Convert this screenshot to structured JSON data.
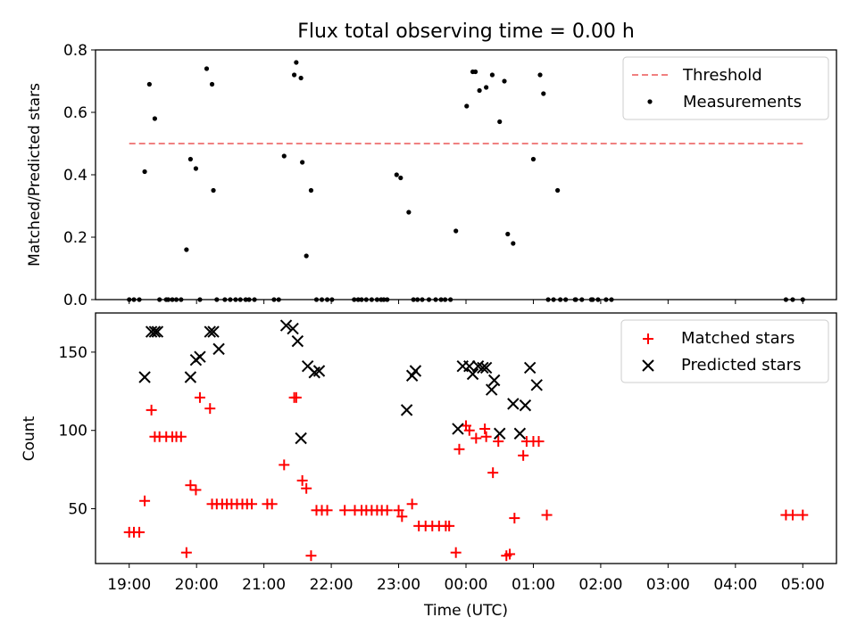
{
  "chart_data": [
    {
      "type": "scatter",
      "title": "Flux total observing time = 0.00 h",
      "ylabel": "Matched/Predicted stars",
      "xlabel": "",
      "ylim": [
        0,
        0.8
      ],
      "yticks": [
        0.0,
        0.2,
        0.4,
        0.6,
        0.8
      ],
      "ytick_labels": [
        "0.0",
        "0.2",
        "0.4",
        "0.6",
        "0.8"
      ],
      "x_unit": "hours since 19:00 UTC",
      "xlim": [
        -0.5,
        10.5
      ],
      "legend_position": "top-right",
      "threshold": {
        "name": "Threshold",
        "value": 0.5,
        "x_range": [
          0,
          10
        ],
        "color": "#f08080",
        "style": "dashed"
      },
      "series": [
        {
          "name": "Measurements",
          "marker": "dot",
          "color": "#000000",
          "x": [
            0.0,
            0.07,
            0.15,
            0.23,
            0.3,
            0.38,
            0.45,
            0.55,
            0.58,
            0.64,
            0.7,
            0.77,
            0.85,
            0.91,
            0.99,
            1.05,
            1.15,
            1.23,
            1.25,
            1.3,
            1.42,
            1.5,
            1.58,
            1.65,
            1.73,
            1.78,
            1.86,
            2.15,
            2.22,
            2.3,
            2.45,
            2.48,
            2.55,
            2.57,
            2.63,
            2.7,
            2.78,
            2.86,
            2.94,
            3.01,
            3.34,
            3.4,
            3.45,
            3.52,
            3.6,
            3.68,
            3.74,
            3.78,
            3.83,
            3.97,
            4.03,
            4.15,
            4.22,
            4.28,
            4.35,
            4.45,
            4.55,
            4.63,
            4.69,
            4.77,
            4.85,
            5.01,
            5.1,
            5.14,
            5.2,
            5.3,
            5.39,
            5.5,
            5.57,
            5.62,
            5.7,
            6.0,
            6.1,
            6.15,
            6.22,
            6.3,
            6.36,
            6.4,
            6.48,
            6.62,
            6.63,
            6.72,
            6.86,
            6.88,
            6.96,
            7.08,
            7.16,
            9.75,
            9.85,
            10.0
          ],
          "y": [
            0.0,
            0.0,
            0.0,
            0.41,
            0.69,
            0.58,
            0.0,
            0.0,
            0.0,
            0.0,
            0.0,
            0.0,
            0.16,
            0.45,
            0.42,
            0.0,
            0.74,
            0.69,
            0.35,
            0.0,
            0.0,
            0.0,
            0.0,
            0.0,
            0.0,
            0.0,
            0.0,
            0.0,
            0.0,
            0.46,
            0.72,
            0.76,
            0.71,
            0.44,
            0.14,
            0.35,
            0.0,
            0.0,
            0.0,
            0.0,
            0.0,
            0.0,
            0.0,
            0.0,
            0.0,
            0.0,
            0.0,
            0.0,
            0.0,
            0.4,
            0.39,
            0.28,
            0.0,
            0.0,
            0.0,
            0.0,
            0.0,
            0.0,
            0.0,
            0.0,
            0.22,
            0.62,
            0.73,
            0.73,
            0.67,
            0.68,
            0.72,
            0.57,
            0.7,
            0.21,
            0.18,
            0.45,
            0.72,
            0.66,
            0.0,
            0.0,
            0.35,
            0.0,
            0.0,
            0.0,
            0.0,
            0.0,
            0.0,
            0.0,
            0.0,
            0.0,
            0.0,
            0.0,
            0.0,
            0.0
          ]
        }
      ]
    },
    {
      "type": "scatter",
      "title": "",
      "ylabel": "Count",
      "xlabel": "Time (UTC)",
      "ylim": [
        15,
        175
      ],
      "yticks": [
        50,
        100,
        150
      ],
      "ytick_labels": [
        "50",
        "100",
        "150"
      ],
      "x_unit": "hours since 19:00 UTC",
      "xlim": [
        -0.5,
        10.5
      ],
      "xticks": [
        0,
        1,
        2,
        3,
        4,
        5,
        6,
        7,
        8,
        9,
        10
      ],
      "xtick_labels": [
        "19:00",
        "20:00",
        "21:00",
        "22:00",
        "23:00",
        "00:00",
        "01:00",
        "02:00",
        "03:00",
        "04:00",
        "05:00"
      ],
      "legend_position": "top-right",
      "series": [
        {
          "name": "Matched stars",
          "marker": "plus",
          "color": "#ff0000",
          "x": [
            0.0,
            0.07,
            0.15,
            0.23,
            0.33,
            0.38,
            0.45,
            0.55,
            0.64,
            0.7,
            0.77,
            0.85,
            0.91,
            0.99,
            1.05,
            1.2,
            1.23,
            1.3,
            1.38,
            1.45,
            1.52,
            1.6,
            1.68,
            1.75,
            1.82,
            2.05,
            2.12,
            2.3,
            2.45,
            2.48,
            2.57,
            2.63,
            2.7,
            2.78,
            2.86,
            2.94,
            3.2,
            3.35,
            3.45,
            3.52,
            3.6,
            3.68,
            3.75,
            3.83,
            4.0,
            4.05,
            4.2,
            4.3,
            4.4,
            4.5,
            4.6,
            4.7,
            4.75,
            4.85,
            4.9,
            5.0,
            5.05,
            5.15,
            5.28,
            5.3,
            5.4,
            5.48,
            5.6,
            5.65,
            5.72,
            5.85,
            5.9,
            6.0,
            6.08,
            6.2,
            9.75,
            9.85,
            10.0
          ],
          "y": [
            35,
            35,
            35,
            55,
            113,
            96,
            96,
            96,
            96,
            96,
            96,
            22,
            65,
            62,
            121,
            114,
            53,
            53,
            53,
            53,
            53,
            53,
            53,
            53,
            53,
            53,
            53,
            78,
            121,
            121,
            68,
            63,
            20,
            49,
            49,
            49,
            49,
            49,
            49,
            49,
            49,
            49,
            49,
            49,
            49,
            45,
            53,
            39,
            39,
            39,
            39,
            39,
            39,
            22,
            88,
            103,
            100,
            95,
            101,
            96,
            73,
            93,
            20,
            21,
            44,
            84,
            93,
            93,
            93,
            46,
            46,
            46,
            46
          ]
        },
        {
          "name": "Predicted stars",
          "marker": "x",
          "color": "#000000",
          "x": [
            0.23,
            0.33,
            0.38,
            0.42,
            0.91,
            0.99,
            1.05,
            1.2,
            1.25,
            1.33,
            2.33,
            2.43,
            2.5,
            2.55,
            2.65,
            2.75,
            2.82,
            4.12,
            4.2,
            4.25,
            4.88,
            4.95,
            5.05,
            5.1,
            5.18,
            5.25,
            5.3,
            5.38,
            5.42,
            5.5,
            5.7,
            5.8,
            5.88,
            5.95,
            6.05
          ],
          "y": [
            134,
            163,
            163,
            163,
            134,
            145,
            147,
            163,
            163,
            152,
            167,
            165,
            157,
            95,
            141,
            137,
            138,
            113,
            135,
            138,
            101,
            141,
            141,
            136,
            141,
            140,
            140,
            126,
            132,
            98,
            117,
            98,
            116,
            140,
            129
          ]
        }
      ]
    }
  ]
}
